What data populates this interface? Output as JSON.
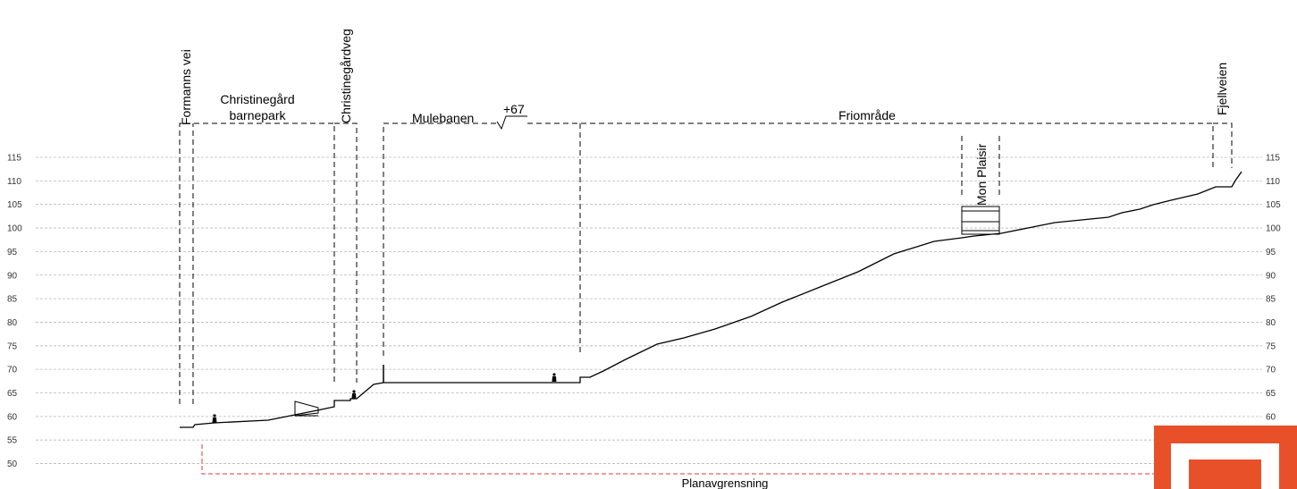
{
  "grid_levels": [
    "115",
    "110",
    "105",
    "100",
    "95",
    "90",
    "85",
    "80",
    "75",
    "70",
    "65",
    "60",
    "55",
    "50"
  ],
  "labels": {
    "formanns_vei": "Formanns vei",
    "christinegard_line1": "Christinegård",
    "christinegard_line2": "barnepark",
    "christinegardveg": "Christinegårdveg",
    "mulebanen": "Mulebanen",
    "elevation_mark": "+67",
    "friomrade": "Friområde",
    "mon_plaisir": "Mon Plaisir",
    "fjellveien": "Fjellveien",
    "planavgrensning": "Planavgrensning"
  },
  "colors": {
    "plan_boundary": "#e53935",
    "logo_orange": "#e8502a"
  }
}
